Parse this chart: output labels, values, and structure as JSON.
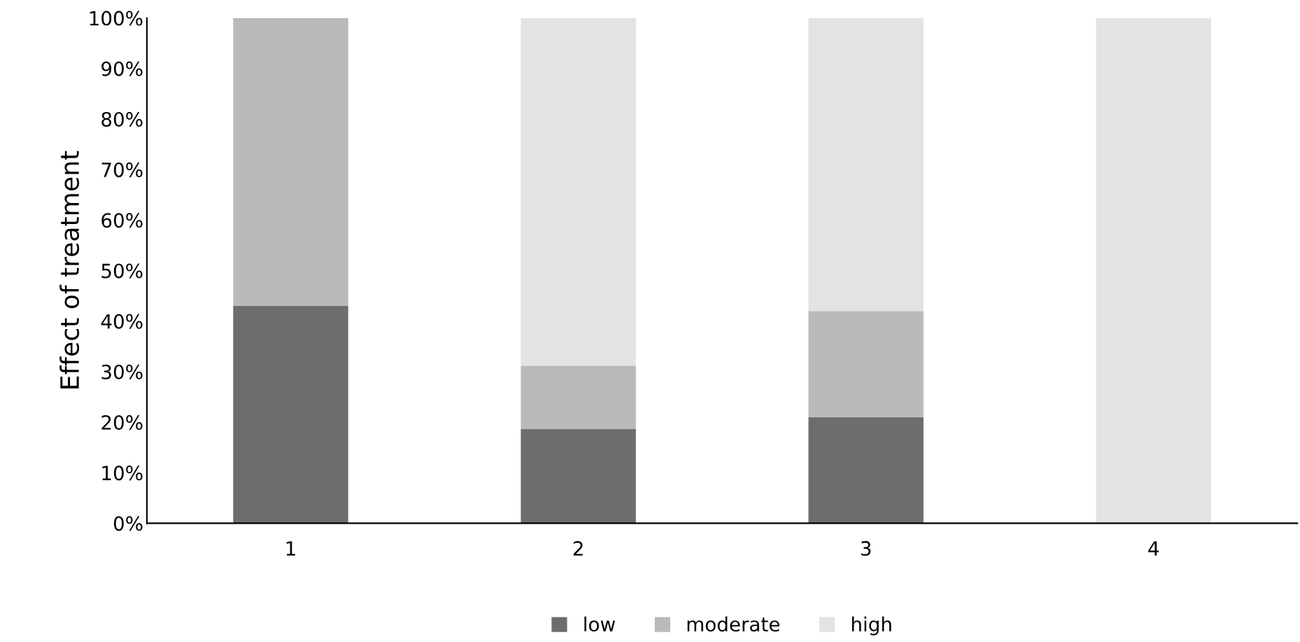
{
  "chart_data": {
    "type": "bar",
    "ylabel": "Effect of treatment",
    "categories": [
      "1",
      "2",
      "3",
      "4"
    ],
    "stacked": true,
    "series": [
      {
        "name": "low",
        "color": "#6d6d6d",
        "values": [
          43,
          18.7,
          21,
          0
        ]
      },
      {
        "name": "moderate",
        "color": "#bababa",
        "values": [
          57,
          12.5,
          21,
          0
        ]
      },
      {
        "name": "high",
        "color": "#e3e3e3",
        "values": [
          0,
          68.8,
          58,
          100
        ]
      }
    ],
    "ylim": [
      0,
      100
    ],
    "yticks": [
      {
        "value": 0,
        "label": "0%"
      },
      {
        "value": 10,
        "label": "10%"
      },
      {
        "value": 20,
        "label": "20%"
      },
      {
        "value": 30,
        "label": "30%"
      },
      {
        "value": 40,
        "label": "40%"
      },
      {
        "value": 50,
        "label": "50%"
      },
      {
        "value": 60,
        "label": "60%"
      },
      {
        "value": 70,
        "label": "70%"
      },
      {
        "value": 80,
        "label": "80%"
      },
      {
        "value": 90,
        "label": "90%"
      },
      {
        "value": 100,
        "label": "100%"
      }
    ],
    "grid": false,
    "legend": "bottom"
  }
}
